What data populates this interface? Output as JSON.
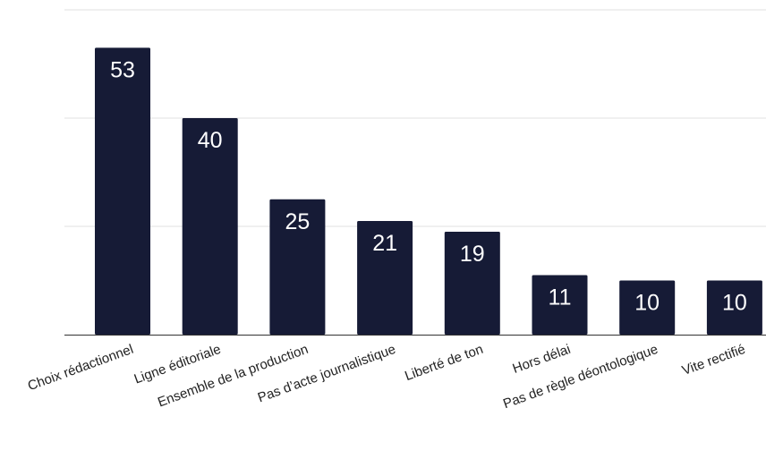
{
  "chart_data": {
    "type": "bar",
    "title": "",
    "xlabel": "",
    "ylabel": "",
    "categories": [
      "Choix rédactionnel",
      "Ligne éditoriale",
      "Ensemble de la production",
      "Pas d’acte journalistique",
      "Liberté de ton",
      "Hors délai",
      "Pas de règle déontologique",
      "Vite rectifié"
    ],
    "values": [
      53,
      40,
      25,
      21,
      19,
      11,
      10,
      10
    ],
    "ylim": [
      0,
      60
    ],
    "gridlines": [
      20,
      40,
      60
    ],
    "grid": true,
    "y_tick_labels_shown": false,
    "legend": "none",
    "colors": {
      "bar": "#161b36",
      "bar_label": "#ffffff",
      "grid": "#e2e2e2",
      "axis": "#333333",
      "tick_text": "#222222"
    }
  }
}
